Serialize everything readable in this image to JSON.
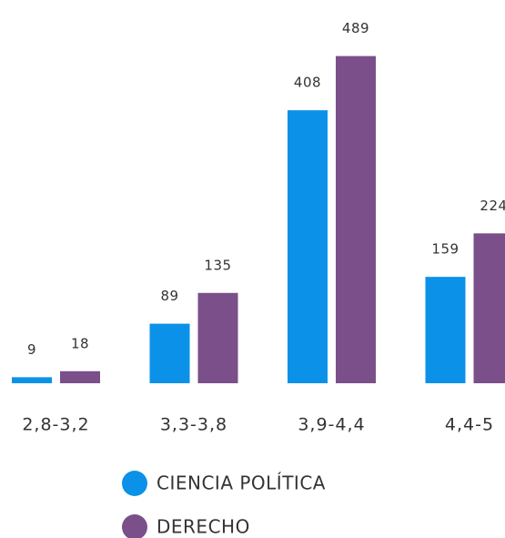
{
  "chart_data": {
    "type": "bar",
    "categories": [
      "2,8-3,2",
      "3,3-3,8",
      "3,9-4,4",
      "4,4-5"
    ],
    "series": [
      {
        "name": "CIENCIA POLÍTICA",
        "color": "#0b92e8",
        "values": [
          9,
          89,
          408,
          159
        ]
      },
      {
        "name": "DERECHO",
        "color": "#7a4f8a",
        "values": [
          18,
          135,
          489,
          224
        ]
      }
    ]
  }
}
